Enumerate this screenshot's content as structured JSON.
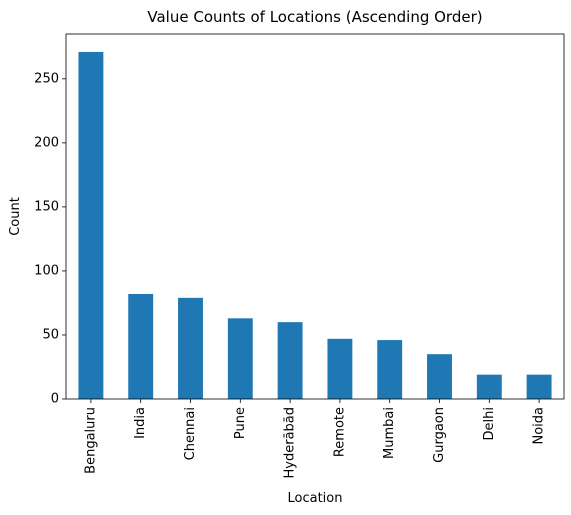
{
  "chart_data": {
    "type": "bar",
    "title": "Value Counts of Locations (Ascending Order)",
    "xlabel": "Location",
    "ylabel": "Count",
    "categories": [
      "Bengaluru",
      "India",
      "Chennai",
      "Pune",
      "Hyderābād",
      "Remote",
      "Mumbai",
      "Gurgaon",
      "Delhi",
      "Noida"
    ],
    "values": [
      271,
      82,
      79,
      63,
      60,
      47,
      46,
      35,
      19,
      19
    ],
    "ylim": [
      0,
      285
    ],
    "yticks": [
      0,
      50,
      100,
      150,
      200,
      250
    ],
    "grid": false,
    "legend": "none",
    "bar_color": "#1f77b4"
  }
}
